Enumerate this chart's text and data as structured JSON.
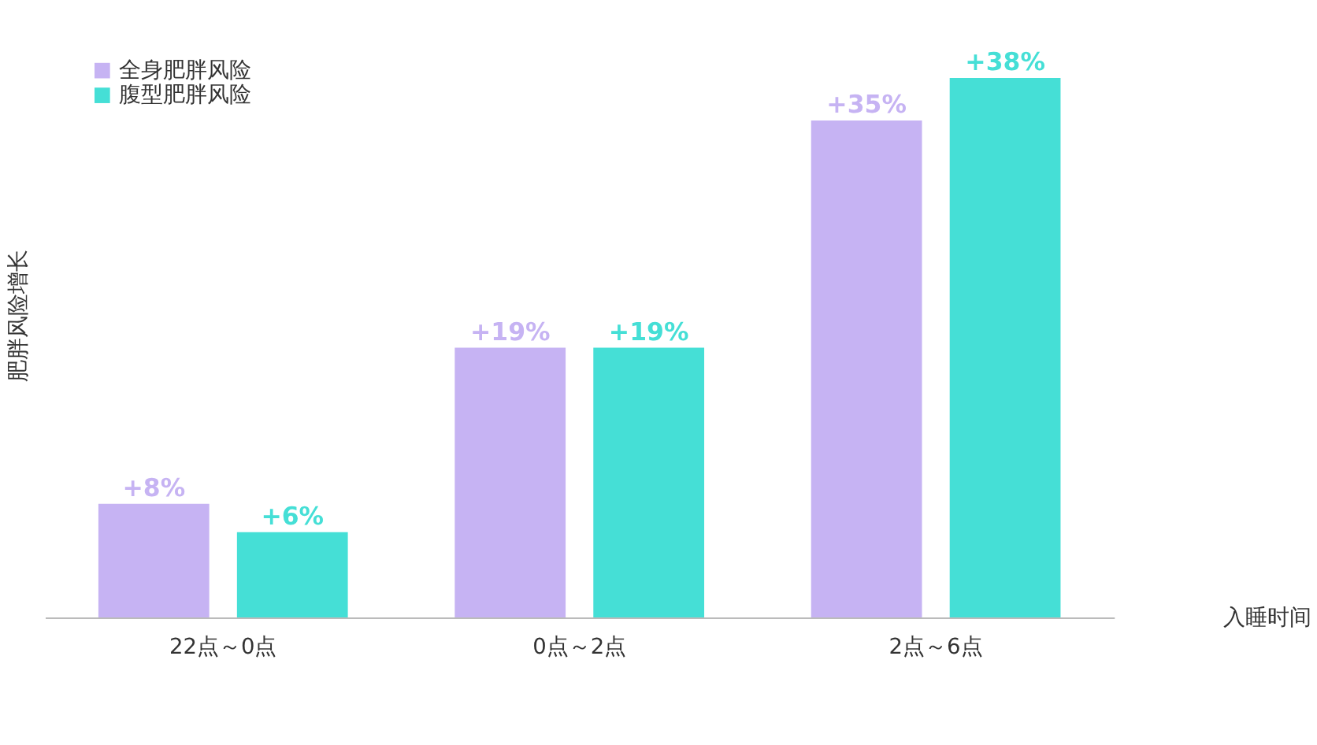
{
  "chart_data": {
    "type": "bar",
    "xlabel": "入睡时间",
    "ylabel": "肥胖风险增长",
    "categories": [
      "22点～0点",
      "0点～2点",
      "2点～6点"
    ],
    "series": [
      {
        "name": "全身肥胖风险",
        "color": "#c6b3f3",
        "values": [
          8,
          19,
          35
        ],
        "value_labels": [
          "+8%",
          "+19%",
          "+35%"
        ]
      },
      {
        "name": "腹型肥胖风险",
        "color": "#45dfd6",
        "values": [
          6,
          19,
          38
        ],
        "value_labels": [
          "+6%",
          "+19%",
          "+38%"
        ]
      }
    ],
    "legend": "top left",
    "grid": false
  }
}
